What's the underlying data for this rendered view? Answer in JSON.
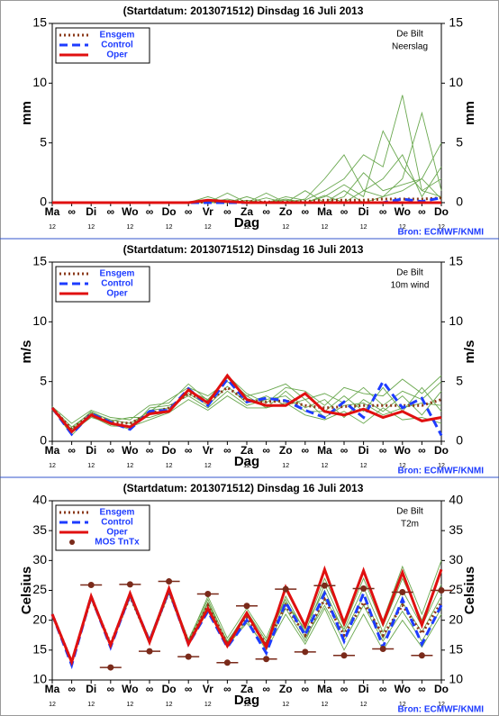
{
  "chart_data": [
    {
      "type": "line",
      "title": "(Startdatum: 2013071512)   Dinsdag   16 Juli   2013",
      "location": "De Bilt",
      "variable": "Neerslag",
      "ylabel": "mm",
      "xlabel": "Dag",
      "source": "Bron: ECMWF/KNMI",
      "categories": [
        "Ma",
        "∞",
        "Di",
        "∞",
        "Wo",
        "∞",
        "Do",
        "∞",
        "Vr",
        "∞",
        "Za",
        "∞",
        "Zo",
        "∞",
        "Ma",
        "∞",
        "Di",
        "∞",
        "Wo",
        "∞",
        "Do"
      ],
      "x_sublabels": [
        "12",
        null,
        "12",
        null,
        "12",
        null,
        "12",
        null,
        "12",
        null,
        "12",
        null,
        "12",
        null,
        "12",
        null,
        "12",
        null,
        "12",
        null,
        "12"
      ],
      "ylim": [
        0,
        15
      ],
      "yticks": [
        0,
        5,
        10,
        15
      ],
      "ensemble": {
        "color": "#6aa84f",
        "values": [
          [
            0,
            0,
            0,
            0,
            0,
            0,
            0,
            0,
            0,
            0.3,
            0,
            0,
            0.5,
            0.2,
            1,
            2,
            4,
            3,
            9,
            1,
            0.5
          ],
          [
            0,
            0,
            0,
            0,
            0,
            0,
            0,
            0,
            0.5,
            0,
            0,
            0.8,
            0,
            0.3,
            2,
            4,
            1,
            0.5,
            2,
            7.5,
            1
          ],
          [
            0,
            0,
            0,
            0,
            0,
            0,
            0,
            0,
            0,
            0,
            0.5,
            0,
            0.2,
            0,
            0.5,
            1.5,
            0.5,
            6,
            3,
            1,
            2
          ],
          [
            0,
            0,
            0,
            0,
            0,
            0,
            0,
            0,
            0,
            0.8,
            0,
            0,
            0,
            1,
            0,
            0.5,
            2.5,
            1,
            1.5,
            2,
            5
          ],
          [
            0,
            0,
            0,
            0,
            0,
            0,
            0,
            0,
            0.2,
            0,
            0,
            0.4,
            0,
            0,
            0.6,
            0,
            1,
            2,
            4,
            0.5,
            3
          ],
          [
            0,
            0,
            0,
            0,
            0,
            0,
            0,
            0,
            0,
            0,
            0.2,
            0,
            0.3,
            0,
            0,
            1,
            0,
            0.5,
            1,
            2,
            0.3
          ]
        ]
      },
      "series": [
        {
          "name": "Ensgem",
          "color": "#8b3a1a",
          "style": "dotted",
          "values": [
            0,
            0,
            0,
            0,
            0,
            0,
            0,
            0,
            0.05,
            0.1,
            0.1,
            0.05,
            0.05,
            0.1,
            0.2,
            0.2,
            0.2,
            0.3,
            0.3,
            0.3,
            0.4
          ]
        },
        {
          "name": "Control",
          "color": "#1e3cff",
          "style": "dashed",
          "values": [
            0,
            0,
            0,
            0,
            0,
            0,
            0,
            0,
            0,
            0,
            0,
            0,
            0,
            0,
            0,
            0,
            0,
            0,
            0.3,
            0.1,
            0.4
          ]
        },
        {
          "name": "Oper",
          "color": "#e01010",
          "style": "solid",
          "values": [
            0,
            0,
            0,
            0,
            0,
            0,
            0,
            0,
            0.2,
            0.1,
            0,
            0,
            0,
            0,
            0,
            0,
            0,
            0,
            0,
            0,
            0
          ]
        }
      ]
    },
    {
      "type": "line",
      "title": "(Startdatum: 2013071512)   Dinsdag   16 Juli   2013",
      "location": "De Bilt",
      "variable": "10m wind",
      "ylabel": "m/s",
      "xlabel": "Dag",
      "source": "Bron: ECMWF/KNMI",
      "categories": [
        "Ma",
        "∞",
        "Di",
        "∞",
        "Wo",
        "∞",
        "Do",
        "∞",
        "Vr",
        "∞",
        "Za",
        "∞",
        "Zo",
        "∞",
        "Ma",
        "∞",
        "Di",
        "∞",
        "Wo",
        "∞",
        "Do"
      ],
      "x_sublabels": [
        "12",
        null,
        "12",
        null,
        "12",
        null,
        "12",
        null,
        "12",
        null,
        "12",
        null,
        "12",
        null,
        "12",
        null,
        "12",
        null,
        "12",
        null,
        "12"
      ],
      "ylim": [
        0,
        15
      ],
      "yticks": [
        0,
        5,
        10,
        15
      ],
      "ensemble": {
        "color": "#6aa84f",
        "values": [
          [
            2.8,
            1.2,
            2.4,
            1.8,
            1.5,
            2.5,
            3.5,
            4.5,
            3.8,
            5.0,
            3.8,
            4.2,
            4.8,
            3.5,
            4.0,
            3.2,
            4.5,
            3.0,
            4.2,
            3.5,
            5.0
          ],
          [
            2.9,
            0.8,
            2.0,
            1.5,
            1.0,
            2.8,
            3.0,
            3.8,
            2.8,
            4.2,
            3.0,
            3.5,
            3.8,
            2.5,
            2.5,
            3.8,
            2.5,
            4.5,
            2.5,
            4.5,
            2.5
          ],
          [
            2.7,
            1.0,
            2.5,
            1.7,
            2.0,
            2.0,
            2.5,
            4.2,
            3.5,
            5.3,
            3.8,
            2.8,
            4.2,
            2.8,
            3.5,
            2.0,
            3.5,
            2.5,
            3.8,
            2.2,
            4.2
          ],
          [
            2.8,
            0.5,
            2.2,
            1.4,
            1.3,
            2.6,
            2.8,
            4.0,
            3.0,
            4.6,
            3.2,
            3.8,
            3.0,
            3.5,
            2.0,
            3.0,
            3.2,
            2.2,
            2.8,
            3.2,
            3.0
          ],
          [
            2.9,
            1.5,
            2.6,
            2.0,
            1.8,
            3.0,
            3.2,
            4.8,
            3.4,
            5.5,
            4.0,
            3.2,
            4.5,
            4.2,
            3.0,
            4.5,
            4.0,
            3.8,
            5.2,
            4.0,
            5.5
          ],
          [
            2.6,
            0.9,
            2.1,
            1.3,
            1.2,
            1.8,
            2.4,
            3.5,
            2.6,
            3.8,
            2.8,
            2.8,
            3.2,
            2.2,
            1.8,
            2.5,
            1.5,
            2.8,
            1.8,
            2.0,
            1.5
          ]
        ]
      },
      "series": [
        {
          "name": "Ensgem",
          "color": "#8b3a1a",
          "style": "dotted",
          "values": [
            2.8,
            1.0,
            2.3,
            1.6,
            1.5,
            2.3,
            2.8,
            4.0,
            3.3,
            4.5,
            3.4,
            3.3,
            3.4,
            3.0,
            2.8,
            2.9,
            3.0,
            3.0,
            3.0,
            3.0,
            3.5
          ]
        },
        {
          "name": "Control",
          "color": "#1e3cff",
          "style": "dashed",
          "values": [
            2.8,
            0.6,
            2.3,
            1.6,
            1.0,
            2.5,
            2.6,
            4.4,
            3.0,
            5.2,
            3.3,
            3.6,
            3.4,
            2.6,
            2.0,
            3.3,
            2.0,
            5.0,
            2.8,
            3.6,
            0.5
          ]
        },
        {
          "name": "Oper",
          "color": "#e01010",
          "style": "solid",
          "values": [
            2.8,
            0.8,
            2.2,
            1.5,
            1.2,
            2.3,
            2.5,
            4.3,
            3.2,
            5.5,
            3.5,
            3.0,
            3.0,
            4.0,
            2.5,
            2.2,
            2.7,
            2.0,
            2.5,
            1.7,
            2.0
          ]
        }
      ]
    },
    {
      "type": "line",
      "title": "(Startdatum: 2013071512)   Dinsdag   16 Juli   2013",
      "location": "De Bilt",
      "variable": "T2m",
      "ylabel": "Celsius",
      "xlabel": "Dag",
      "source": "Bron: ECMWF/KNMI",
      "categories": [
        "Ma",
        "∞",
        "Di",
        "∞",
        "Wo",
        "∞",
        "Do",
        "∞",
        "Vr",
        "∞",
        "Za",
        "∞",
        "Zo",
        "∞",
        "Ma",
        "∞",
        "Di",
        "∞",
        "Wo",
        "∞",
        "Do"
      ],
      "x_sublabels": [
        "12",
        null,
        "12",
        null,
        "12",
        null,
        "12",
        null,
        "12",
        null,
        "12",
        null,
        "12",
        null,
        "12",
        null,
        "12",
        null,
        "12",
        null,
        "12"
      ],
      "ylim": [
        10,
        40
      ],
      "yticks": [
        10,
        15,
        20,
        25,
        30,
        35,
        40
      ],
      "ensemble": {
        "color": "#6aa84f",
        "values": [
          [
            21,
            13,
            24,
            16,
            24.5,
            16.5,
            25,
            16.5,
            23,
            16.5,
            21,
            16,
            24,
            18,
            26,
            19,
            27,
            19,
            27,
            20,
            28
          ],
          [
            21,
            12.8,
            23.5,
            15.5,
            23.8,
            16,
            24.5,
            15.8,
            22,
            15.5,
            20,
            15,
            21,
            16,
            22,
            15,
            21,
            15,
            20,
            15.5,
            21
          ],
          [
            21,
            13.2,
            24.2,
            16.2,
            24.2,
            17,
            25.5,
            16.5,
            24,
            17,
            22,
            17,
            25,
            19,
            25,
            18,
            24,
            17,
            23,
            18,
            24
          ],
          [
            21,
            12.9,
            23.8,
            15.8,
            24,
            16.3,
            24.8,
            16,
            21.5,
            15.8,
            19.5,
            15.5,
            22,
            16.5,
            23.5,
            18.5,
            25.5,
            18,
            25,
            19,
            26
          ],
          [
            21,
            13.1,
            24,
            16.1,
            24.3,
            16.8,
            25.2,
            16.8,
            23.5,
            16.2,
            21.5,
            16.5,
            23.5,
            17,
            22.5,
            16.5,
            22.5,
            16.5,
            21.5,
            16.5,
            22
          ],
          [
            21,
            13,
            23.6,
            15.7,
            23.9,
            16.2,
            24.6,
            15.9,
            22.8,
            15.8,
            20.8,
            15.8,
            23,
            18.5,
            27,
            20,
            28,
            20,
            29,
            21,
            30
          ]
        ]
      },
      "series": [
        {
          "name": "Ensgem",
          "color": "#8b3a1a",
          "style": "dotted",
          "values": [
            21,
            13,
            23.8,
            16,
            24,
            16.5,
            24.8,
            16.3,
            22.5,
            16,
            20.5,
            16,
            22.5,
            17.5,
            23.5,
            17.5,
            23,
            17.5,
            22.5,
            17.8,
            23
          ]
        },
        {
          "name": "Control",
          "color": "#1e3cff",
          "style": "dashed",
          "values": [
            21,
            12.5,
            24,
            15.5,
            24.3,
            16.5,
            25,
            16,
            21.5,
            15.5,
            20,
            14.5,
            23,
            17.5,
            24.5,
            16.5,
            24.5,
            15.5,
            23.5,
            16,
            22.5
          ]
        },
        {
          "name": "Oper",
          "color": "#e01010",
          "style": "solid",
          "values": [
            21,
            13,
            24,
            15.8,
            24.5,
            16.3,
            25.3,
            16,
            22,
            15.7,
            21.2,
            15.5,
            25.5,
            19,
            28.5,
            19.5,
            28.3,
            19.5,
            28,
            19.2,
            28.5
          ]
        },
        {
          "name": "MOS TnTx",
          "color": "#7a2a1a",
          "style": "dot",
          "values": [
            null,
            null,
            25.9,
            12.1,
            26,
            14.8,
            26.5,
            13.9,
            24.4,
            12.9,
            22.4,
            13.5,
            25.2,
            14.7,
            25.8,
            14.1,
            25.3,
            15.2,
            24.7,
            14.1,
            25
          ]
        }
      ]
    }
  ]
}
